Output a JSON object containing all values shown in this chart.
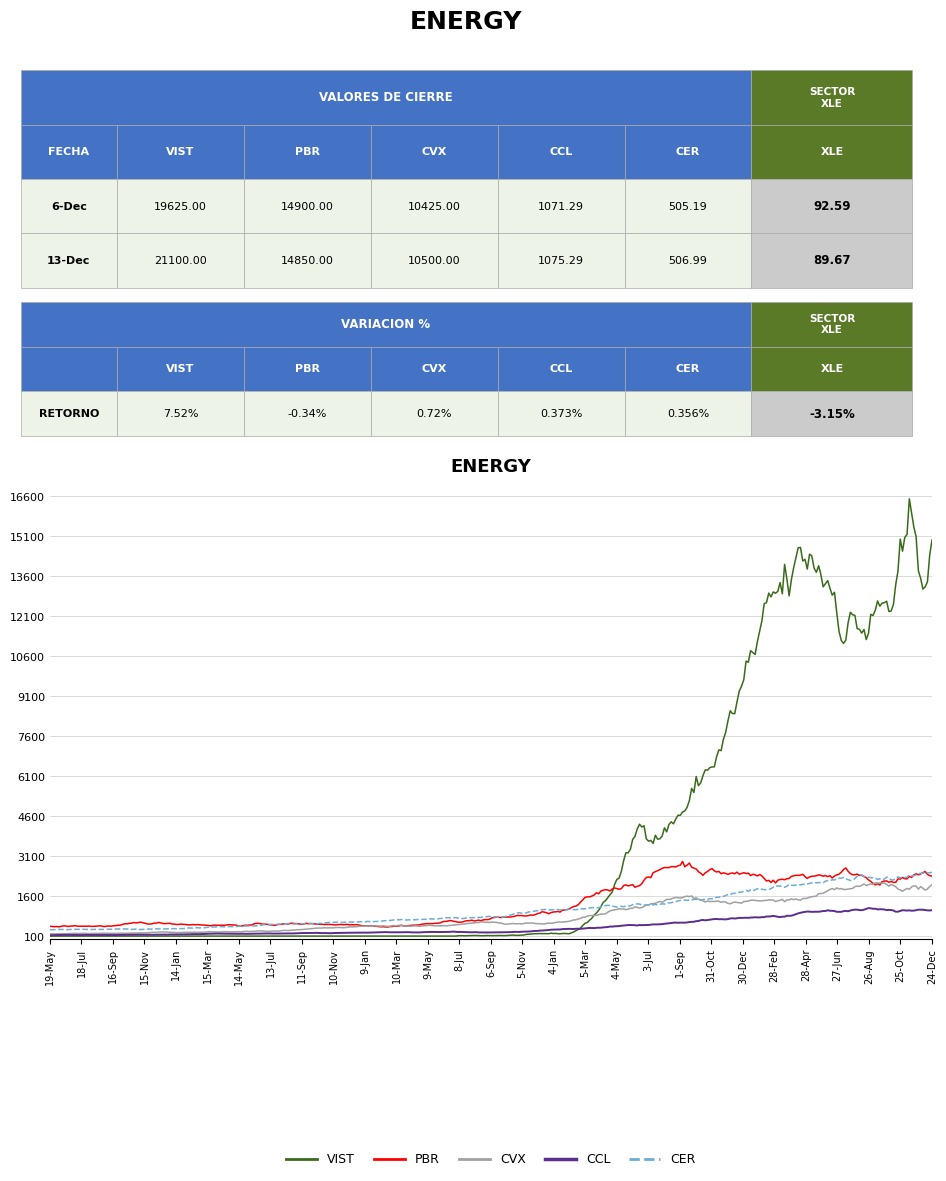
{
  "title": "ENERGY",
  "table1_header1": "VALORES DE CIERRE",
  "table1_header2_label": "SECTOR\nXLE",
  "table1_col_headers": [
    "FECHA",
    "VIST",
    "PBR",
    "CVX",
    "CCL",
    "CER",
    "SECTOR\nXLE"
  ],
  "table1_rows": [
    [
      "6-Dec",
      "19625.00",
      "14900.00",
      "10425.00",
      "1071.29",
      "505.19",
      "92.59"
    ],
    [
      "13-Dec",
      "21100.00",
      "14850.00",
      "10500.00",
      "1075.29",
      "506.99",
      "89.67"
    ]
  ],
  "table2_header1": "VARIACION %",
  "table2_header2_label": "SECTOR\nXLE",
  "table2_col_headers": [
    "",
    "VIST",
    "PBR",
    "CVX",
    "CCL",
    "CER",
    "SECTOR\nXLE"
  ],
  "table2_rows": [
    [
      "RETORNO",
      "7.52%",
      "-0.34%",
      "0.72%",
      "0.373%",
      "0.356%",
      "-3.15%"
    ]
  ],
  "blue_header_color": "#4472C4",
  "green_header_color": "#5A7A28",
  "light_green_row_color": "#EEF3E8",
  "light_gray_row_color": "#CBCBCB",
  "chart_title": "ENERGY",
  "x_labels": [
    "19-May",
    "18-Jul",
    "16-Sep",
    "15-Nov",
    "14-Jan",
    "15-Mar",
    "14-May",
    "13-Jul",
    "11-Sep",
    "10-Nov",
    "9-Jan",
    "10-Mar",
    "9-May",
    "8-Jul",
    "6-Sep",
    "5-Nov",
    "4-Jan",
    "5-Mar",
    "4-May",
    "3-Jul",
    "1-Sep",
    "31-Oct",
    "30-Dec",
    "28-Feb",
    "28-Apr",
    "27-Jun",
    "26-Aug",
    "25-Oct",
    "24-Dec"
  ],
  "y_ticks": [
    100,
    1600,
    3100,
    4600,
    6100,
    7600,
    9100,
    10600,
    12100,
    13600,
    15100,
    16600
  ],
  "y_min": 0,
  "y_max": 17200,
  "series_colors": {
    "VIST": "#3A6B1A",
    "PBR": "#FF0000",
    "CVX": "#A0A0A0",
    "CCL": "#5B2D8E",
    "CER": "#6BAED6"
  },
  "col_fracs": [
    0.105,
    0.138,
    0.138,
    0.138,
    0.138,
    0.138,
    0.175
  ]
}
